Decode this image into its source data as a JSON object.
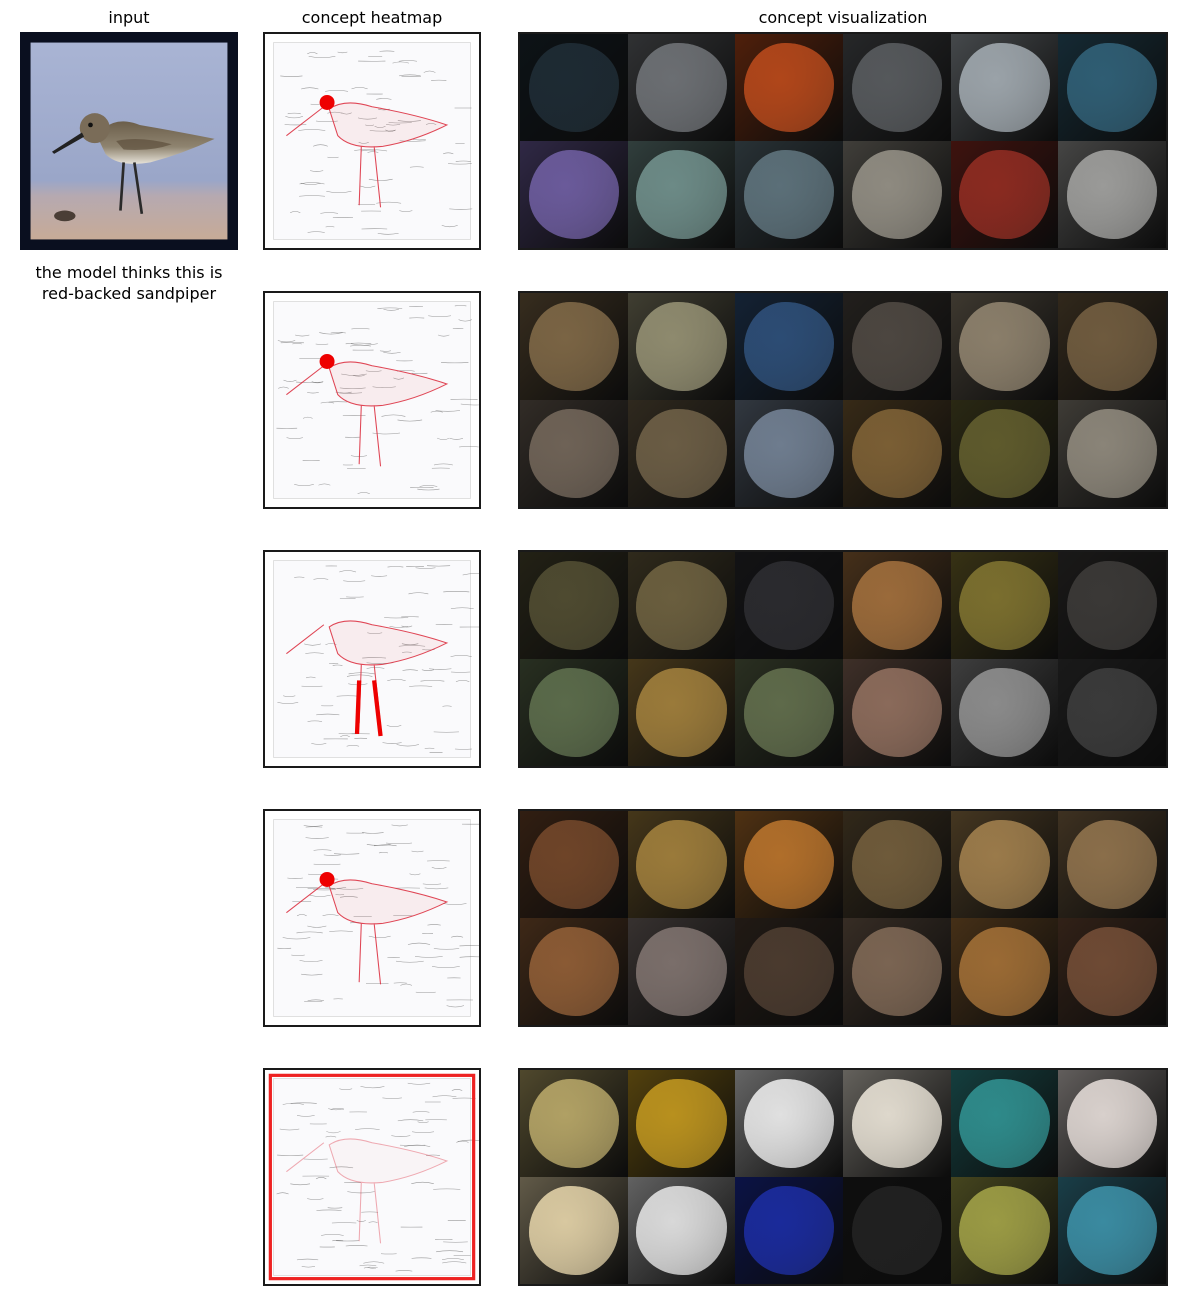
{
  "headers": {
    "input": "input",
    "heatmap": "concept heatmap",
    "visualization": "concept visualization"
  },
  "caption": {
    "line1": "the model thinks this is",
    "line2": "red-backed sandpiper"
  },
  "concepts": [
    {
      "focus": "bird-head",
      "tiles": [
        "#1d2a33",
        "#6b6e72",
        "#b0461a",
        "#55585b",
        "#9aa2a8",
        "#2f5d73",
        "#6a5a9a",
        "#6c8a86",
        "#5b6f78",
        "#8e8a80",
        "#8a2a20",
        "#9a9a98"
      ]
    },
    {
      "focus": "bird-head",
      "tiles": [
        "#7a6444",
        "#8e8a6e",
        "#2c4c74",
        "#4c4640",
        "#8a7e6a",
        "#6e5a3e",
        "#6e6256",
        "#6a5c44",
        "#6e7c8e",
        "#7a5e34",
        "#5e5a2c",
        "#8a8478"
      ]
    },
    {
      "focus": "legs",
      "tiles": [
        "#4e4a30",
        "#6a5e3e",
        "#2a2a2e",
        "#9a6a3a",
        "#7a6e2e",
        "#3a3836",
        "#5a6a4a",
        "#9a7a3a",
        "#5e6a4a",
        "#8a6a5a",
        "#8a8a8a",
        "#3a3a3a"
      ]
    },
    {
      "focus": "bird-head",
      "tiles": [
        "#6e4428",
        "#9a7a3a",
        "#b06e2a",
        "#6e5a3a",
        "#9a7a4a",
        "#8a6e4a",
        "#8a5a34",
        "#7a6e6a",
        "#4a3a2e",
        "#7a6452",
        "#9a6a34",
        "#6e4a34"
      ]
    },
    {
      "focus": "border",
      "tiles": [
        "#b0a064",
        "#b8901e",
        "#e0e0e0",
        "#ded8cc",
        "#2e8a8a",
        "#d8d0cc",
        "#d8c8a0",
        "#d8d8d8",
        "#1a2a9a",
        "#202020",
        "#9a9a44",
        "#3a8aa0"
      ]
    }
  ]
}
